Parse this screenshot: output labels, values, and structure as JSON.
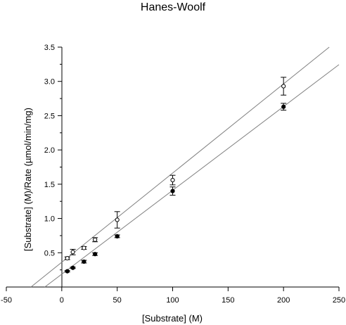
{
  "chart_data": {
    "type": "scatter",
    "title": "Hanes-Woolf",
    "xlabel": "[Substrate] (M)",
    "ylabel": "[Substrate] (M)/Rate (µmol/min/mg)",
    "xlim": [
      -50,
      250
    ],
    "ylim": [
      0.0,
      3.5
    ],
    "x_ticks": [
      "-50",
      "0",
      "50",
      "100",
      "150",
      "200",
      "250"
    ],
    "y_ticks": [
      "0.5",
      "1.0",
      "1.5",
      "2.0",
      "2.5",
      "3.0",
      "3.5"
    ],
    "grid": false,
    "series": [
      {
        "marker": "open-circle",
        "x": [
          5,
          10,
          20,
          30,
          50,
          100,
          200
        ],
        "y": [
          0.42,
          0.51,
          0.57,
          0.69,
          0.98,
          1.56,
          2.93
        ],
        "err": [
          0.02,
          0.04,
          0.02,
          0.03,
          0.12,
          0.07,
          0.13
        ]
      },
      {
        "marker": "filled-circle",
        "x": [
          5,
          10,
          20,
          30,
          50,
          100,
          200
        ],
        "y": [
          0.23,
          0.28,
          0.37,
          0.48,
          0.74,
          1.4,
          2.63
        ],
        "err": [
          0.01,
          0.01,
          0.02,
          0.02,
          0.02,
          0.06,
          0.05
        ]
      }
    ],
    "fit_lines": [
      {
        "slope": 0.01301,
        "intercept": 0.3616
      },
      {
        "slope": 0.01223,
        "intercept": 0.1872
      }
    ]
  }
}
